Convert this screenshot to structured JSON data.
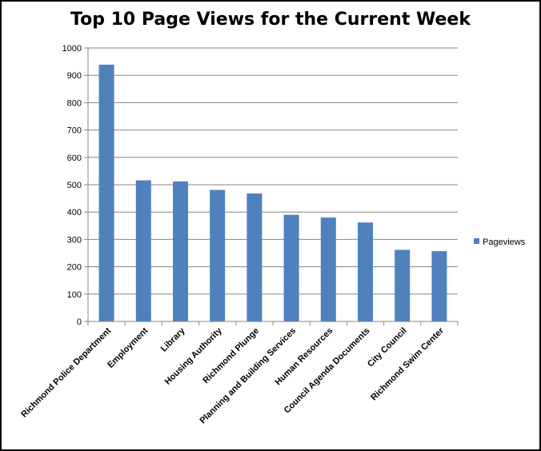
{
  "chart_data": {
    "type": "bar",
    "title": "Top 10 Page Views for the Current Week",
    "categories": [
      "Richmond Police Department",
      "Employment",
      "Library",
      "Housing Authority",
      "Richmond Plunge",
      "Planning and Building Services",
      "Human Resources",
      "Council Agenda Documents",
      "City Council",
      "Richmond Swim Center"
    ],
    "series": [
      {
        "name": "Pageviews",
        "values": [
          939,
          516,
          512,
          481,
          468,
          390,
          380,
          362,
          262,
          257
        ]
      }
    ],
    "ylim": [
      0,
      1000
    ],
    "yticks": [
      0,
      100,
      200,
      300,
      400,
      500,
      600,
      700,
      800,
      900,
      1000
    ],
    "xlabel": "",
    "ylabel": "",
    "grid": true,
    "legend": "right",
    "colors": {
      "bar": "#4f81bd",
      "grid": "#868686"
    }
  }
}
